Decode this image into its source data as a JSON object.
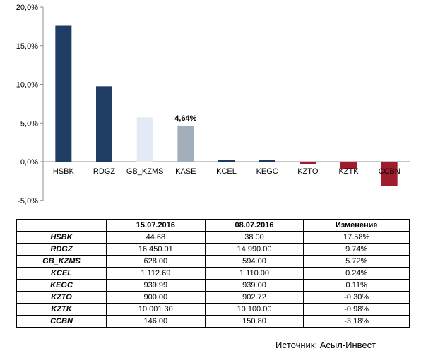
{
  "chart_data": {
    "type": "bar",
    "title": "",
    "xlabel": "",
    "ylabel": "",
    "ylim": [
      -5,
      20
    ],
    "yticks": [
      "20,0%",
      "15,0%",
      "10,0%",
      "5,0%",
      "0,0%",
      "-5,0%"
    ],
    "ytick_values": [
      20,
      15,
      10,
      5,
      0,
      -5
    ],
    "categories": [
      "HSBK",
      "RDGZ",
      "GB_KZMS",
      "KASE",
      "KCEL",
      "KEGC",
      "KZTO",
      "KZTK",
      "CCBN"
    ],
    "values": [
      17.58,
      9.74,
      5.72,
      4.64,
      0.24,
      0.11,
      -0.3,
      -0.98,
      -3.18
    ],
    "colors": [
      "#1f3d63",
      "#1f3d63",
      "#e3eaf5",
      "#a3aebb",
      "#1f3d63",
      "#1f3d63",
      "#a01c2c",
      "#a01c2c",
      "#a01c2c"
    ],
    "data_labels": [
      {
        "index": 3,
        "text": "4,64%"
      }
    ],
    "grid": false,
    "legend": "none"
  },
  "table": {
    "headers": [
      "",
      "15.07.2016",
      "08.07.2016",
      "Изменение"
    ],
    "rows": [
      [
        "HSBK",
        "44.68",
        "38.00",
        "17.58%"
      ],
      [
        "RDGZ",
        "16 450.01",
        "14 990.00",
        "9.74%"
      ],
      [
        "GB_KZMS",
        "628.00",
        "594.00",
        "5.72%"
      ],
      [
        "KCEL",
        "1 112.69",
        "1 110.00",
        "0.24%"
      ],
      [
        "KEGC",
        "939.99",
        "939.00",
        "0.11%"
      ],
      [
        "KZTO",
        "900.00",
        "902.72",
        "-0.30%"
      ],
      [
        "KZTK",
        "10 001.30",
        "10 100.00",
        "-0.98%"
      ],
      [
        "CCBN",
        "146.00",
        "150.80",
        "-3.18%"
      ]
    ]
  },
  "source": "Источник: Асыл-Инвест"
}
